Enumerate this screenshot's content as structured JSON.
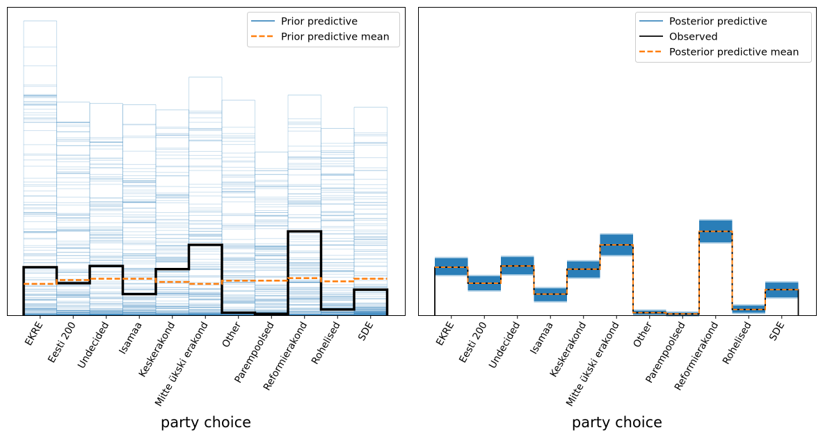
{
  "chart_data": [
    {
      "type": "step",
      "title": "",
      "xlabel": "party choice",
      "ylabel": "",
      "y_ticks_shown": false,
      "categories": [
        "EKRE",
        "Eesti 200",
        "Undecided",
        "Isamaa",
        "Keskerakond",
        "Mitte ükski erakond",
        "Other",
        "Parempoolsed",
        "Reformierakond",
        "Rohelised",
        "SDE"
      ],
      "ylim": [
        0,
        0.46
      ],
      "legend": {
        "placement": "top-right",
        "entries": [
          "Prior predictive",
          "Prior predictive mean"
        ]
      },
      "series": [
        {
          "name": "Prior predictive mean",
          "values": [
            0.049,
            0.055,
            0.057,
            0.057,
            0.052,
            0.049,
            0.054,
            0.054,
            0.058,
            0.053,
            0.057
          ]
        },
        {
          "values": [
            0.075,
            0.05,
            0.077,
            0.033,
            0.072,
            0.11,
            0.004,
            0.002,
            0.131,
            0.009,
            0.04
          ]
        },
        {
          "name": "Prior predictive",
          "values_max_draw": [
            0.46,
            0.333,
            0.331,
            0.329,
            0.321,
            0.372,
            0.336,
            0.255,
            0.344,
            0.292,
            0.325
          ]
        }
      ]
    },
    {
      "type": "step",
      "title": "",
      "xlabel": "party choice",
      "ylabel": "",
      "y_ticks_shown": false,
      "categories": [
        "EKRE",
        "Eesti 200",
        "Undecided",
        "Isamaa",
        "Keskerakond",
        "Mitte ükski erakond",
        "Other",
        "Parempoolsed",
        "Reformierakond",
        "Rohelised",
        "SDE"
      ],
      "ylim": [
        0,
        0.46
      ],
      "legend": {
        "placement": "top-right",
        "entries": [
          "Posterior predictive",
          "Observed",
          "Posterior predictive mean"
        ]
      },
      "series": [
        {
          "name": "Observed",
          "values": [
            0.075,
            0.05,
            0.077,
            0.033,
            0.072,
            0.11,
            0.004,
            0.002,
            0.131,
            0.009,
            0.04
          ]
        },
        {
          "name": "Posterior predictive mean",
          "values": [
            0.075,
            0.05,
            0.077,
            0.033,
            0.072,
            0.11,
            0.004,
            0.002,
            0.131,
            0.009,
            0.04
          ]
        },
        {
          "name": "Posterior predictive",
          "band_low": [
            0.063,
            0.039,
            0.064,
            0.022,
            0.059,
            0.094,
            0.001,
            0.0,
            0.114,
            0.004,
            0.028
          ],
          "band_high": [
            0.089,
            0.061,
            0.091,
            0.042,
            0.084,
            0.126,
            0.007,
            0.004,
            0.148,
            0.015,
            0.051
          ]
        }
      ]
    }
  ],
  "colors": {
    "blue": "#1f77b4",
    "orange": "#ff7f0e",
    "black": "#000000"
  }
}
